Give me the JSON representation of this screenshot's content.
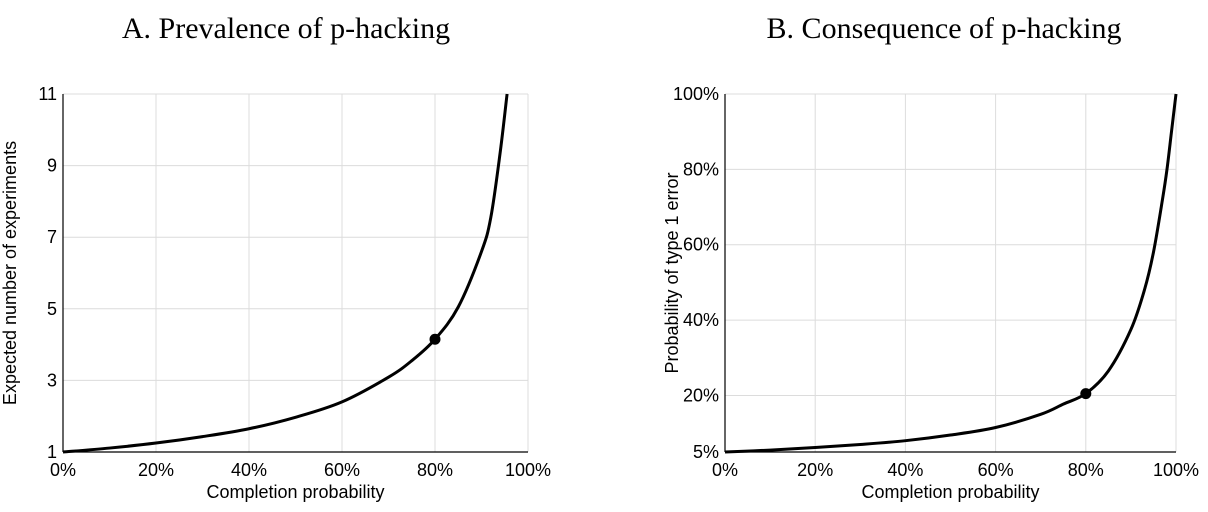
{
  "chart_data": [
    {
      "type": "line",
      "title": "A. Prevalence of p-hacking",
      "xlabel": "Completion probability",
      "ylabel": "Expected number of experiments",
      "xlim": [
        0,
        1
      ],
      "ylim": [
        1,
        11
      ],
      "x_ticks": [
        0,
        0.2,
        0.4,
        0.6,
        0.8,
        1.0
      ],
      "x_tick_labels": [
        "0%",
        "20%",
        "40%",
        "60%",
        "80%",
        "100%"
      ],
      "y_ticks": [
        1,
        3,
        5,
        7,
        9,
        11
      ],
      "y_tick_labels": [
        "1",
        "3",
        "5",
        "7",
        "9",
        "11"
      ],
      "x_grid": [
        0,
        0.2,
        0.4,
        0.6,
        0.8,
        1.0
      ],
      "y_grid": [
        1,
        3,
        5,
        7,
        9,
        11
      ],
      "grid": true,
      "series": [
        {
          "x": [
            0,
            0.1,
            0.2,
            0.3,
            0.4,
            0.5,
            0.6,
            0.7,
            0.75,
            0.8,
            0.85,
            0.9,
            0.92,
            0.94,
            0.955
          ],
          "y": [
            1.0,
            1.11,
            1.25,
            1.43,
            1.65,
            1.97,
            2.4,
            3.09,
            3.55,
            4.15,
            5.05,
            6.6,
            7.55,
            9.35,
            11.0
          ]
        }
      ],
      "marker": {
        "x": 0.8,
        "y": 4.15
      }
    },
    {
      "type": "line",
      "title": "B. Consequence of p-hacking",
      "xlabel": "Completion probability",
      "ylabel": "Probability of type 1 error",
      "xlim": [
        0,
        1
      ],
      "ylim": [
        0.05,
        1.0
      ],
      "x_ticks": [
        0,
        0.2,
        0.4,
        0.6,
        0.8,
        1.0
      ],
      "x_tick_labels": [
        "0%",
        "20%",
        "40%",
        "60%",
        "80%",
        "100%"
      ],
      "y_ticks": [
        0.05,
        0.2,
        0.4,
        0.6,
        0.8,
        1.0
      ],
      "y_tick_labels": [
        "5%",
        "20%",
        "40%",
        "60%",
        "80%",
        "100%"
      ],
      "x_grid": [
        0,
        0.2,
        0.4,
        0.6,
        0.8,
        1.0
      ],
      "y_grid": [
        0.2,
        0.4,
        0.6,
        0.8,
        1.0
      ],
      "grid": true,
      "series": [
        {
          "x": [
            0,
            0.1,
            0.2,
            0.3,
            0.4,
            0.5,
            0.6,
            0.7,
            0.75,
            0.8,
            0.85,
            0.9,
            0.93,
            0.95,
            0.97,
            0.98,
            0.99,
            1.0
          ],
          "y": [
            0.05,
            0.055,
            0.062,
            0.07,
            0.08,
            0.095,
            0.115,
            0.15,
            0.177,
            0.205,
            0.265,
            0.375,
            0.48,
            0.58,
            0.72,
            0.8,
            0.9,
            1.0
          ]
        }
      ],
      "marker": {
        "x": 0.8,
        "y": 0.205
      }
    }
  ]
}
